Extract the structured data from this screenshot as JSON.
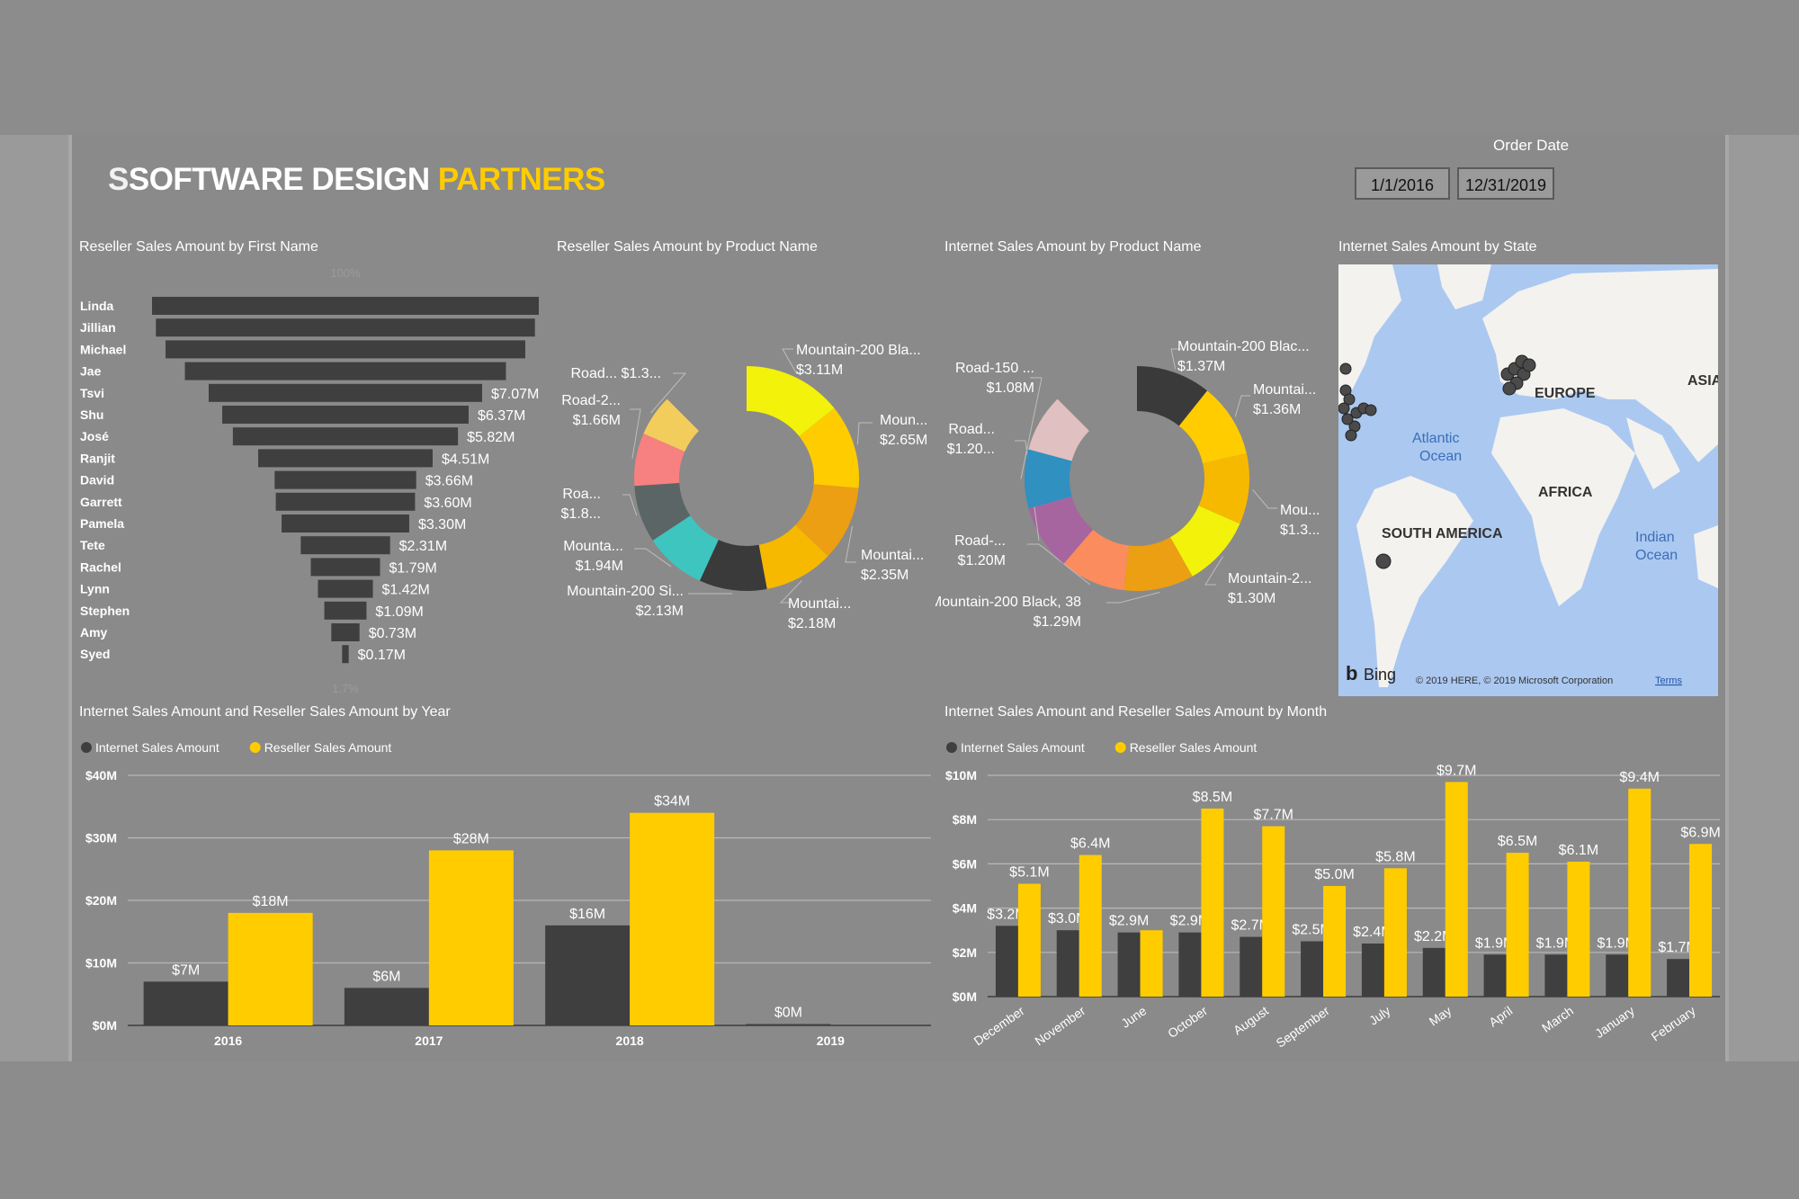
{
  "logo": {
    "a": "SOFTWARE DESIGN",
    "b": "PARTNERS"
  },
  "order_date": {
    "title": "Order Date",
    "start": "1/1/2016",
    "end": "12/31/2019"
  },
  "colors": {
    "yellow": "#ffcc00",
    "dark": "#3f3f3f",
    "bg": "#8a8a8a"
  },
  "visuals": {
    "funnel": "Reseller Sales Amount by First Name",
    "reseller_donut": "Reseller Sales Amount by Product Name",
    "internet_donut": "Internet Sales Amount by Product Name",
    "map": "Internet Sales Amount by State",
    "year": "Internet Sales Amount and Reseller Sales Amount by Year",
    "month": "Internet Sales Amount and Reseller Sales Amount by Month"
  },
  "map": {
    "labels": [
      "EUROPE",
      "ASIA",
      "AFRICA",
      "SOUTH AMERICA",
      "Atlantic",
      "Ocean",
      "Indian",
      "Ocean"
    ],
    "bing": "Bing",
    "copyright": "© 2019 HERE, © 2019 Microsoft Corporation",
    "terms": "Terms"
  },
  "chart_data": [
    {
      "type": "funnel",
      "title": "Reseller Sales Amount by First Name",
      "top_pct": "100%",
      "bottom_pct": "1.7%",
      "categories": [
        "Linda",
        "Jillian",
        "Michael",
        "Jae",
        "Tsvi",
        "Shu",
        "José",
        "Ranjit",
        "David",
        "Garrett",
        "Pamela",
        "Tete",
        "Rachel",
        "Lynn",
        "Stephen",
        "Amy",
        "Syed"
      ],
      "values": [
        10.0,
        9.8,
        9.3,
        8.3,
        7.07,
        6.37,
        5.82,
        4.51,
        3.66,
        3.6,
        3.3,
        2.31,
        1.79,
        1.42,
        1.09,
        0.73,
        0.17
      ],
      "labels": [
        "",
        "",
        "",
        "",
        "$7.07M",
        "$6.37M",
        "$5.82M",
        "$4.51M",
        "$3.66M",
        "$3.60M",
        "$3.30M",
        "$2.31M",
        "$1.79M",
        "$1.42M",
        "$1.09M",
        "$0.73M",
        "$0.17M"
      ]
    },
    {
      "type": "pie",
      "title": "Reseller Sales Amount by Product Name",
      "slices": [
        {
          "name": "Mountain-200 Bla...",
          "label": "$3.11M",
          "value": 3.11,
          "color": "#f2f20a"
        },
        {
          "name": "Moun...",
          "label": "$2.65M",
          "value": 2.65,
          "color": "#ffcc00"
        },
        {
          "name": "Mountai...",
          "label": "$2.35M",
          "value": 2.35,
          "color": "#ec9f12"
        },
        {
          "name": "Mountai...",
          "label": "$2.18M",
          "value": 2.18,
          "color": "#f7b800"
        },
        {
          "name": "Mountain-200 Si...",
          "label": "$2.13M",
          "value": 2.13,
          "color": "#3a3a3a"
        },
        {
          "name": "Mounta...",
          "label": "$1.94M",
          "value": 1.94,
          "color": "#3ec5c0"
        },
        {
          "name": "Roa...",
          "label": "$1.8...",
          "value": 1.8,
          "color": "#5c6566"
        },
        {
          "name": "Road-2...",
          "label": "$1.66M",
          "value": 1.66,
          "color": "#f78080"
        },
        {
          "name": "Road... $1.3...",
          "label": "",
          "value": 1.3,
          "color": "#f3cd5b"
        }
      ]
    },
    {
      "type": "pie",
      "title": "Internet Sales Amount by Product Name",
      "slices": [
        {
          "name": "Mountain-200 Blac...",
          "label": "$1.37M",
          "value": 1.37,
          "color": "#3a3a3a"
        },
        {
          "name": "Mountai...",
          "label": "$1.36M",
          "value": 1.36,
          "color": "#ffcc00"
        },
        {
          "name": "Mou...",
          "label": "$1.3...",
          "value": 1.3,
          "color": "#f7b800"
        },
        {
          "name": "Mountain-2...",
          "label": "$1.30M",
          "value": 1.3,
          "color": "#f2f20a"
        },
        {
          "name": "Mountain-200 Black, 38",
          "label": "$1.29M",
          "value": 1.29,
          "color": "#ec9f12"
        },
        {
          "name": "Road-...",
          "label": "$1.20M",
          "value": 1.2,
          "color": "#fb8c5e"
        },
        {
          "name": "Road...",
          "label": "$1.20...",
          "value": 1.2,
          "color": "#a765a0"
        },
        {
          "name": "Road-150 ...",
          "label": "$1.08M",
          "value": 1.08,
          "color": "#3090c0"
        },
        {
          "name": "",
          "label": "",
          "value": 1.06,
          "color": "#e0c0c0"
        }
      ]
    },
    {
      "type": "bar",
      "title": "Internet Sales Amount and Reseller Sales Amount by Year",
      "categories": [
        "2016",
        "2017",
        "2018",
        "2019"
      ],
      "ylim": [
        0,
        40
      ],
      "yticks": [
        "$0M",
        "$10M",
        "$20M",
        "$30M",
        "$40M"
      ],
      "series": [
        {
          "name": "Internet Sales Amount",
          "values": [
            7,
            6,
            16,
            0
          ],
          "labels": [
            "$7M",
            "$6M",
            "$16M",
            "$0M"
          ],
          "color": "#3f3f3f"
        },
        {
          "name": "Reseller Sales Amount",
          "values": [
            18,
            28,
            34,
            null
          ],
          "labels": [
            "$18M",
            "$28M",
            "$34M",
            ""
          ],
          "color": "#ffcc00"
        }
      ]
    },
    {
      "type": "bar",
      "title": "Internet Sales Amount and Reseller Sales Amount by Month",
      "categories": [
        "December",
        "November",
        "June",
        "October",
        "August",
        "September",
        "July",
        "May",
        "April",
        "March",
        "January",
        "February"
      ],
      "ylim": [
        0,
        10
      ],
      "yticks": [
        "$0M",
        "$2M",
        "$4M",
        "$6M",
        "$8M",
        "$10M"
      ],
      "series": [
        {
          "name": "Internet Sales Amount",
          "values": [
            3.2,
            3.0,
            2.9,
            2.9,
            2.7,
            2.5,
            2.4,
            2.2,
            1.9,
            1.9,
            1.9,
            1.7
          ],
          "labels": [
            "$3.2M",
            "$3.0M",
            "$2.9M",
            "$2.9M",
            "$2.7M",
            "$2.5M",
            "$2.4M",
            "$2.2M",
            "$1.9M",
            "$1.9M",
            "$1.9M",
            "$1.7M"
          ],
          "color": "#3f3f3f"
        },
        {
          "name": "Reseller Sales Amount",
          "values": [
            5.1,
            6.4,
            3.0,
            8.5,
            7.7,
            5.0,
            5.8,
            9.7,
            6.5,
            6.1,
            9.4,
            6.9
          ],
          "labels": [
            "$5.1M",
            "$6.4M",
            "",
            "$8.5M",
            "$7.7M",
            "$5.0M",
            "$5.8M",
            "$9.7M",
            "$6.5M",
            "$6.1M",
            "$9.4M",
            "$6.9M"
          ],
          "color": "#ffcc00"
        }
      ]
    }
  ]
}
